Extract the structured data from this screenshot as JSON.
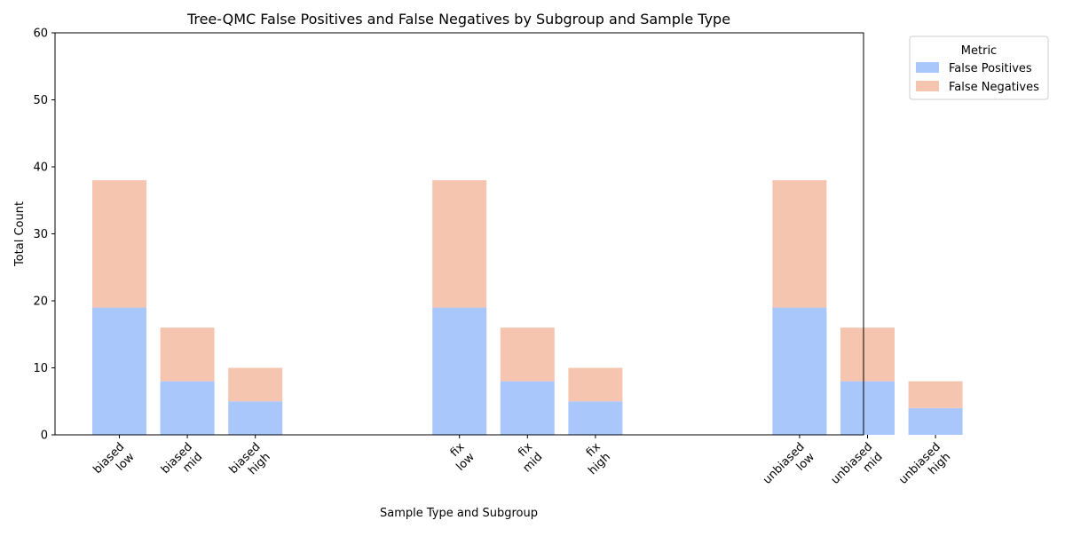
{
  "chart_data": {
    "type": "bar",
    "stacked": true,
    "title": "Tree-QMC False Positives and False Negatives by Subgroup and Sample Type",
    "xlabel": "Sample Type and Subgroup",
    "ylabel": "Total Count",
    "ylim": [
      0,
      60
    ],
    "yticks": [
      0,
      10,
      20,
      30,
      40,
      50,
      60
    ],
    "grid": false,
    "legend": {
      "title": "Metric",
      "placement": "upper-right-outside"
    },
    "groups": [
      {
        "name": "biased",
        "subgroups": [
          "low",
          "mid",
          "high"
        ]
      },
      {
        "name": "fix",
        "subgroups": [
          "low",
          "mid",
          "high"
        ]
      },
      {
        "name": "unbiased",
        "subgroups": [
          "low",
          "mid",
          "high"
        ]
      }
    ],
    "categories": [
      {
        "group": "biased",
        "subgroup": "low"
      },
      {
        "group": "biased",
        "subgroup": "mid"
      },
      {
        "group": "biased",
        "subgroup": "high"
      },
      {
        "group": "fix",
        "subgroup": "low"
      },
      {
        "group": "fix",
        "subgroup": "mid"
      },
      {
        "group": "fix",
        "subgroup": "high"
      },
      {
        "group": "unbiased",
        "subgroup": "low"
      },
      {
        "group": "unbiased",
        "subgroup": "mid"
      },
      {
        "group": "unbiased",
        "subgroup": "high"
      }
    ],
    "series": [
      {
        "name": "False Positives",
        "color": "#aac7fc",
        "values": [
          19,
          8,
          5,
          19,
          8,
          5,
          19,
          8,
          4
        ]
      },
      {
        "name": "False Negatives",
        "color": "#f6c5b0",
        "values": [
          19,
          8,
          5,
          19,
          8,
          5,
          19,
          8,
          4
        ]
      }
    ]
  }
}
